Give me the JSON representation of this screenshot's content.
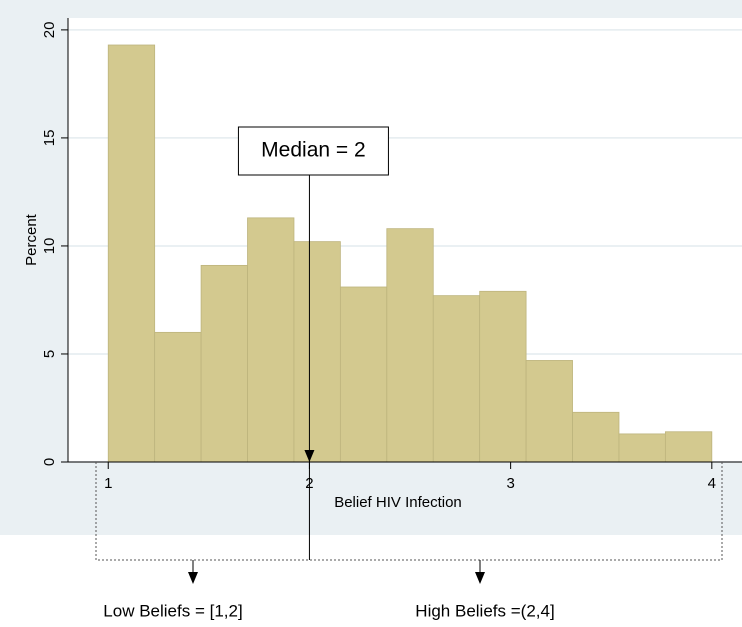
{
  "chart_data": {
    "type": "histogram",
    "x_label": "Belief HIV Infection",
    "y_label": "Percent",
    "bins": [
      1,
      1.2308,
      1.4615,
      1.6923,
      1.9231,
      2.1538,
      2.3846,
      2.6154,
      2.8462,
      3.0769,
      3.3077,
      3.5385,
      3.7692,
      4
    ],
    "values": [
      19.3,
      6.0,
      9.1,
      11.3,
      10.2,
      8.1,
      10.8,
      7.7,
      7.9,
      4.7,
      2.3,
      1.3,
      1.4
    ],
    "color": "#d3c98f",
    "xlim": [
      0.8,
      4.15
    ],
    "xticks": [
      1,
      2,
      3,
      4
    ],
    "ylim": [
      0,
      20.55
    ],
    "yticks": [
      0,
      5,
      10,
      15,
      20
    ],
    "grid": true,
    "annotations": [
      {
        "x": 2,
        "label": "Median = 2"
      }
    ],
    "group_labels": [
      "Low  Beliefs = [1,2]",
      "High  Beliefs =(2,4]"
    ]
  }
}
